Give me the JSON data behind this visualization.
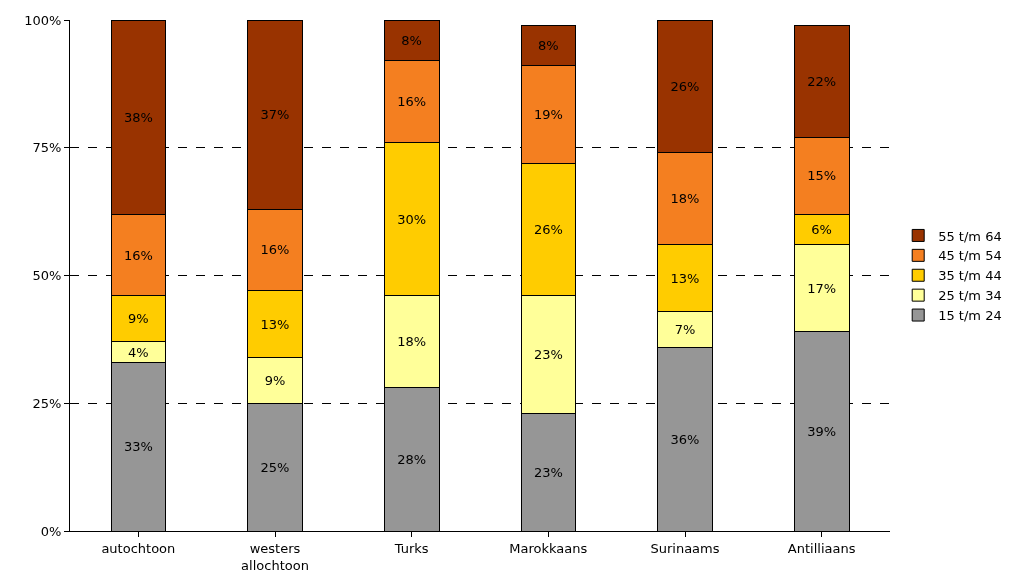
{
  "chart_data": {
    "type": "bar",
    "stacked": true,
    "categories": [
      "autochtoon",
      "westers allochtoon",
      "Turks",
      "Marokkaans",
      "Surinaams",
      "Antilliaans"
    ],
    "series": [
      {
        "name": "15 t/m 24",
        "color": "#969696",
        "values": [
          33,
          25,
          28,
          23,
          36,
          39
        ],
        "value_labels": [
          "33%",
          "25%",
          "28%",
          "23%",
          "36%",
          "39%"
        ]
      },
      {
        "name": "25 t/m 34",
        "color": "#ffff99",
        "values": [
          4,
          9,
          18,
          23,
          7,
          17
        ],
        "value_labels": [
          "4%",
          "9%",
          "18%",
          "23%",
          "7%",
          "17%"
        ]
      },
      {
        "name": "35 t/m 44",
        "color": "#ffcc00",
        "values": [
          9,
          13,
          30,
          26,
          13,
          6
        ],
        "value_labels": [
          "9%",
          "13%",
          "30%",
          "26%",
          "13%",
          "6%"
        ]
      },
      {
        "name": "45 t/m 54",
        "color": "#f47f20",
        "values": [
          16,
          16,
          16,
          19,
          18,
          15
        ],
        "value_labels": [
          "16%",
          "16%",
          "16%",
          "19%",
          "18%",
          "15%"
        ]
      },
      {
        "name": "55 t/m 64",
        "color": "#993300",
        "values": [
          38,
          37,
          8,
          8,
          26,
          22
        ],
        "value_labels": [
          "38%",
          "37%",
          "8%",
          "8%",
          "26%",
          "22%"
        ]
      }
    ],
    "ylim": [
      0,
      100
    ],
    "yticks": [
      {
        "value": 0,
        "label": "0%"
      },
      {
        "value": 25,
        "label": "25%"
      },
      {
        "value": 50,
        "label": "50%"
      },
      {
        "value": 75,
        "label": "75%"
      },
      {
        "value": 100,
        "label": "100%"
      }
    ],
    "grid": "y",
    "legend": "right"
  }
}
